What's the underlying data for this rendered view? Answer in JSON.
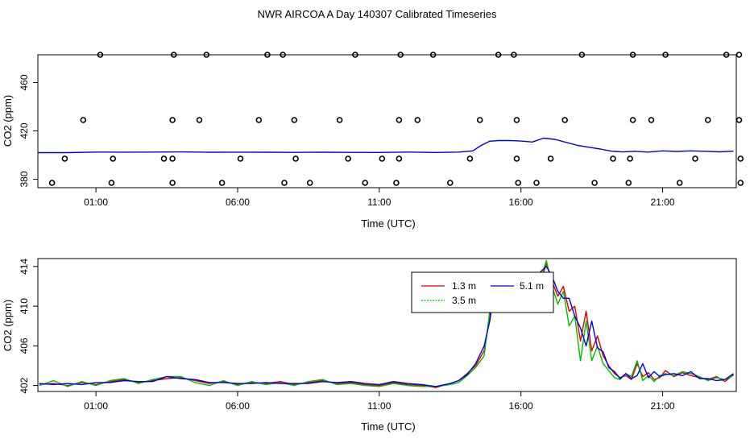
{
  "title": "NWR AIRCOA A  Day 140307  Calibrated Timeseries",
  "colors": {
    "red": "#dd0000",
    "green": "#00bb00",
    "blue": "#0000dd",
    "black": "#000000"
  },
  "chart_data": [
    {
      "type": "scatter",
      "xlabel": "Time (UTC)",
      "ylabel": "CO2 (ppm)",
      "xlim": [
        -1.05,
        23.6
      ],
      "ylim": [
        373,
        483
      ],
      "x_ticks": [
        1,
        6,
        11,
        16,
        21
      ],
      "x_tick_labels": [
        "01:00",
        "06:00",
        "11:00",
        "16:00",
        "21:00"
      ],
      "y_ticks": [
        380,
        420,
        460
      ],
      "y_tick_labels": [
        "380",
        "420",
        "460"
      ],
      "calibration_points": {
        "x": [
          -0.55,
          1.55,
          3.7,
          5.45,
          7.65,
          8.55,
          10.5,
          11.6,
          13.5,
          15.9,
          16.55,
          18.6,
          19.8,
          21.6,
          23.75,
          -0.1,
          1.6,
          3.4,
          3.7,
          6.1,
          8.05,
          9.9,
          11.1,
          11.7,
          14.2,
          15.85,
          17.05,
          19.25,
          19.85,
          22.15,
          23.75,
          0.55,
          3.7,
          4.65,
          6.75,
          8.0,
          9.6,
          11.7,
          12.35,
          14.55,
          15.85,
          17.55,
          19.95,
          20.6,
          22.6,
          23.7,
          1.15,
          3.75,
          4.9,
          7.05,
          7.6,
          10.15,
          11.75,
          12.9,
          15.2,
          15.75,
          18.15,
          19.95,
          21.1,
          23.25,
          23.7
        ],
        "y": [
          377,
          377,
          377,
          377,
          377,
          377,
          377,
          377,
          377,
          377,
          377,
          377,
          377,
          377,
          377,
          397,
          397,
          397,
          397,
          397,
          397,
          397,
          397,
          397,
          397,
          397,
          397,
          397,
          397,
          397,
          397,
          429,
          429,
          429,
          429,
          429,
          429,
          429,
          429,
          429,
          429,
          429,
          429,
          429,
          429,
          429,
          483,
          483,
          483,
          483,
          483,
          483,
          483,
          483,
          483,
          483,
          483,
          483,
          483,
          483,
          483
        ]
      },
      "series": [
        {
          "color": "#0000dd",
          "x": [
            -1.05,
            0,
            1,
            2,
            3,
            4,
            5,
            6,
            7,
            8,
            9,
            10,
            11,
            12,
            13,
            13.8,
            14.3,
            14.6,
            14.9,
            15.2,
            15.6,
            16.0,
            16.4,
            16.8,
            17.2,
            17.6,
            18.0,
            18.4,
            18.8,
            19.2,
            19.6,
            20.0,
            20.5,
            21.0,
            21.5,
            22.0,
            22.5,
            23.0,
            23.5
          ],
          "values": [
            402,
            402,
            402.5,
            402.4,
            402.5,
            402.6,
            402.3,
            402.4,
            402.3,
            402.2,
            402.3,
            402.2,
            402.1,
            402.5,
            402.1,
            402.5,
            403.5,
            408,
            411.5,
            412,
            412,
            411.6,
            410.8,
            414,
            413,
            410.5,
            408,
            406.5,
            405,
            403.2,
            402.6,
            403.1,
            402.5,
            403.5,
            403.0,
            403.5,
            403.1,
            402.7,
            403.2
          ]
        }
      ]
    },
    {
      "type": "line",
      "xlabel": "Time (UTC)",
      "ylabel": "CO2 (ppm)",
      "xlim": [
        -1.05,
        23.6
      ],
      "ylim": [
        401.4,
        414.8
      ],
      "x_ticks": [
        1,
        6,
        11,
        16,
        21
      ],
      "x_tick_labels": [
        "01:00",
        "06:00",
        "11:00",
        "16:00",
        "21:00"
      ],
      "y_ticks": [
        402,
        406,
        410,
        414
      ],
      "y_tick_labels": [
        "402",
        "406",
        "410",
        "414"
      ],
      "legend": {
        "position": "top-center",
        "entries": [
          "1.3 m",
          "3.5 m",
          "5.1 m"
        ]
      },
      "series": [
        {
          "name": "1.3 m",
          "color": "#dd0000",
          "x": [
            -1,
            -0.5,
            0,
            0.5,
            1,
            1.5,
            2,
            2.5,
            3,
            3.5,
            4,
            4.5,
            5,
            5.5,
            6,
            6.5,
            7,
            7.5,
            8,
            8.5,
            9,
            9.5,
            10,
            10.5,
            11,
            11.5,
            12,
            12.5,
            13,
            13.5,
            13.8,
            14.1,
            14.4,
            14.7,
            14.9,
            15.1,
            15.3,
            15.5,
            15.7,
            15.9,
            16.1,
            16.3,
            16.5,
            16.7,
            16.9,
            17.1,
            17.3,
            17.5,
            17.7,
            17.9,
            18.1,
            18.3,
            18.5,
            18.7,
            18.9,
            19.1,
            19.3,
            19.5,
            19.7,
            19.9,
            20.1,
            20.3,
            20.5,
            20.7,
            20.9,
            21.1,
            21.4,
            21.7,
            22.0,
            22.3,
            22.6,
            22.9,
            23.2,
            23.5
          ],
          "values": [
            402.1,
            402.2,
            402.0,
            402.3,
            402.1,
            402.4,
            402.6,
            402.3,
            402.5,
            402.7,
            402.8,
            402.5,
            402.2,
            402.4,
            402.1,
            402.3,
            402.2,
            402.4,
            402.1,
            402.3,
            402.5,
            402.2,
            402.3,
            402.1,
            402.0,
            402.3,
            402.1,
            402.0,
            401.8,
            402.2,
            402.5,
            403.2,
            404.0,
            405.5,
            409.0,
            412.0,
            413.0,
            412.5,
            411.5,
            412.2,
            411.0,
            411.8,
            410.5,
            412.5,
            414.3,
            412.5,
            411.0,
            412.0,
            409.5,
            410.0,
            406.5,
            409.5,
            405.5,
            407.0,
            405.0,
            404.0,
            403.2,
            402.8,
            403.0,
            402.6,
            404.2,
            402.9,
            403.3,
            402.6,
            402.8,
            403.5,
            402.9,
            403.3,
            403.0,
            402.8,
            402.6,
            402.9,
            402.4,
            403.1
          ]
        },
        {
          "name": "3.5 m",
          "color": "#00bb00",
          "x": [
            -1,
            -0.5,
            0,
            0.5,
            1,
            1.5,
            2,
            2.5,
            3,
            3.5,
            4,
            4.5,
            5,
            5.5,
            6,
            6.5,
            7,
            7.5,
            8,
            8.5,
            9,
            9.5,
            10,
            10.5,
            11,
            11.5,
            12,
            12.5,
            13,
            13.5,
            13.8,
            14.1,
            14.4,
            14.7,
            14.9,
            15.1,
            15.3,
            15.5,
            15.7,
            15.9,
            16.1,
            16.3,
            16.5,
            16.7,
            16.9,
            17.1,
            17.3,
            17.5,
            17.7,
            17.9,
            18.1,
            18.3,
            18.5,
            18.7,
            18.9,
            19.1,
            19.3,
            19.5,
            19.7,
            19.9,
            20.1,
            20.3,
            20.5,
            20.7,
            20.9,
            21.1,
            21.4,
            21.7,
            22.0,
            22.3,
            22.6,
            22.9,
            23.2,
            23.5
          ],
          "values": [
            402.0,
            402.5,
            401.9,
            402.4,
            402.0,
            402.5,
            402.7,
            402.2,
            402.6,
            402.9,
            402.9,
            402.3,
            402.0,
            402.5,
            402.0,
            402.4,
            402.1,
            402.3,
            402.0,
            402.4,
            402.6,
            402.1,
            402.2,
            402.0,
            401.9,
            402.2,
            402.0,
            401.9,
            401.9,
            402.1,
            402.3,
            403.0,
            403.8,
            405.0,
            409.5,
            413.2,
            412.0,
            411.8,
            412.4,
            411.2,
            410.8,
            411.0,
            410.2,
            412.8,
            414.6,
            412.0,
            410.2,
            411.5,
            408.0,
            409.0,
            404.5,
            408.5,
            404.5,
            406.0,
            404.2,
            403.5,
            402.8,
            402.6,
            403.2,
            402.9,
            404.5,
            402.5,
            403.0,
            402.4,
            403.0,
            403.2,
            403.0,
            403.4,
            403.2,
            402.9,
            402.5,
            402.8,
            402.6,
            403.0
          ]
        },
        {
          "name": "5.1 m",
          "color": "#0000dd",
          "x": [
            -1,
            -0.5,
            0,
            0.5,
            1,
            1.5,
            2,
            2.5,
            3,
            3.5,
            4,
            4.5,
            5,
            5.5,
            6,
            6.5,
            7,
            7.5,
            8,
            8.5,
            9,
            9.5,
            10,
            10.5,
            11,
            11.5,
            12,
            12.5,
            13,
            13.5,
            13.8,
            14.1,
            14.4,
            14.7,
            14.9,
            15.1,
            15.3,
            15.5,
            15.7,
            15.9,
            16.1,
            16.3,
            16.5,
            16.7,
            16.9,
            17.1,
            17.3,
            17.5,
            17.7,
            17.9,
            18.1,
            18.3,
            18.5,
            18.7,
            18.9,
            19.1,
            19.3,
            19.5,
            19.7,
            19.9,
            20.1,
            20.3,
            20.5,
            20.7,
            20.9,
            21.1,
            21.4,
            21.7,
            22.0,
            22.3,
            22.6,
            22.9,
            23.2,
            23.5
          ],
          "values": [
            402.2,
            402.1,
            402.2,
            402.1,
            402.3,
            402.3,
            402.5,
            402.4,
            402.4,
            402.9,
            402.7,
            402.6,
            402.3,
            402.3,
            402.2,
            402.2,
            402.3,
            402.2,
            402.2,
            402.2,
            402.4,
            402.3,
            402.4,
            402.2,
            402.1,
            402.4,
            402.2,
            402.1,
            401.9,
            402.2,
            402.5,
            403.1,
            404.2,
            406.0,
            408.5,
            412.6,
            412.5,
            412.2,
            411.0,
            411.8,
            411.6,
            411.2,
            410.0,
            413.5,
            414.0,
            413.0,
            411.5,
            410.8,
            410.8,
            409.0,
            407.8,
            406.0,
            408.5,
            405.8,
            405.4,
            403.8,
            403.4,
            402.7,
            403.2,
            402.7,
            403.0,
            404.2,
            402.8,
            403.4,
            402.9,
            403.1,
            403.2,
            403.0,
            403.4,
            402.7,
            402.7,
            402.5,
            402.6,
            403.2
          ]
        }
      ]
    }
  ]
}
